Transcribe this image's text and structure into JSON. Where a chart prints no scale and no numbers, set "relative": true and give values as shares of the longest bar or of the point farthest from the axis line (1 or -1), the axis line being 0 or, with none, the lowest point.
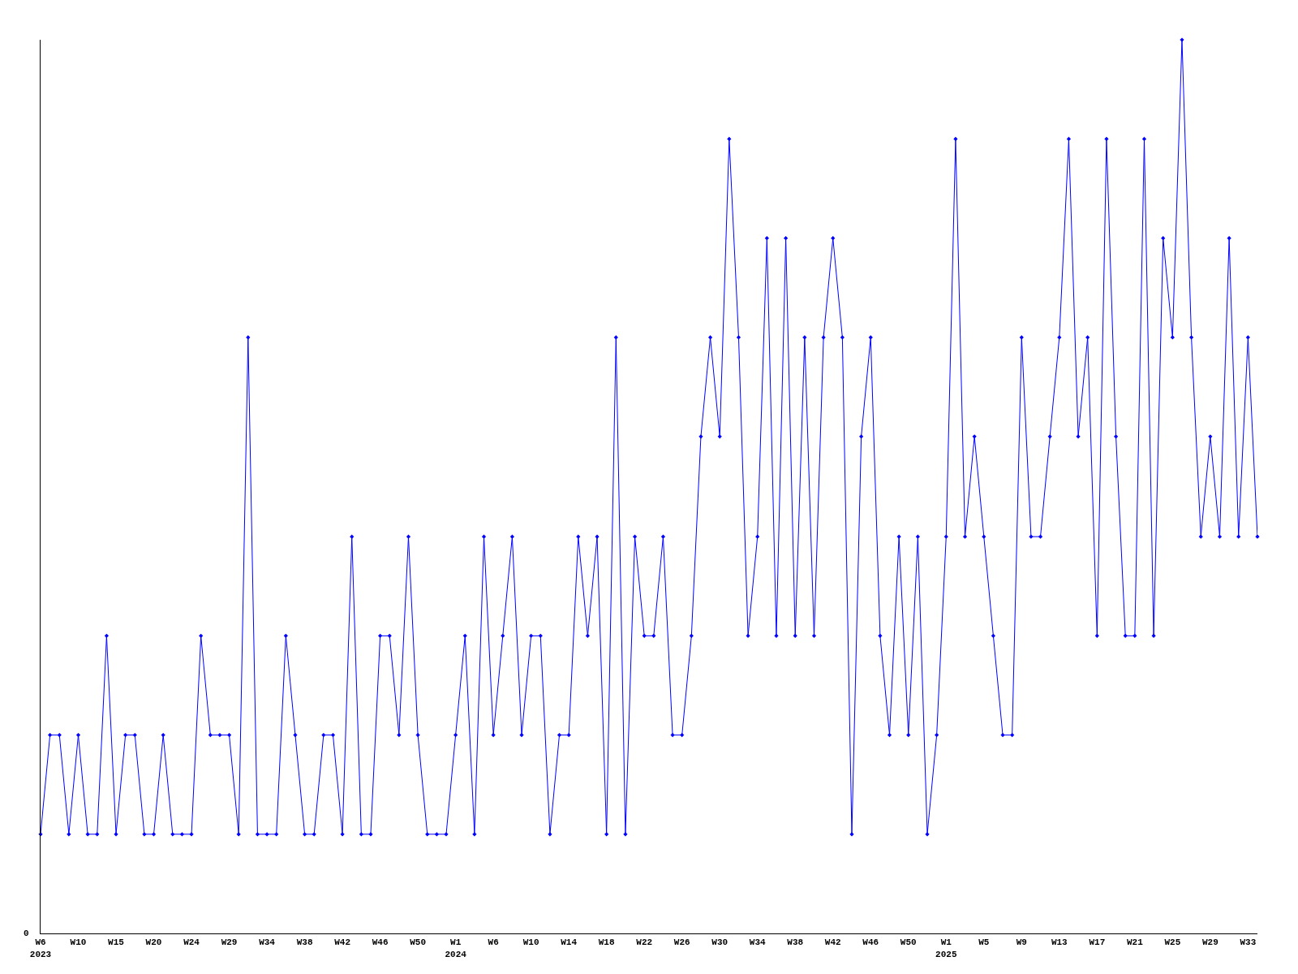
{
  "chart_data": {
    "type": "line",
    "relative": true,
    "color": "#0000ff",
    "marker": "diamond",
    "line_style": "solid",
    "legend": false,
    "annotations": [
      "0"
    ],
    "categories": [
      "W6\n2023",
      null,
      null,
      null,
      "W10",
      null,
      null,
      null,
      "W15",
      null,
      null,
      null,
      "W20",
      null,
      null,
      null,
      "W24",
      null,
      null,
      null,
      "W29",
      null,
      null,
      null,
      "W34",
      null,
      null,
      null,
      "W38",
      null,
      null,
      null,
      "W42",
      null,
      null,
      null,
      "W46",
      null,
      null,
      null,
      "W50",
      null,
      null,
      null,
      "W1\n2024",
      null,
      null,
      null,
      "W6",
      null,
      null,
      null,
      "W10",
      null,
      null,
      null,
      "W14",
      null,
      null,
      null,
      "W18",
      null,
      null,
      null,
      "W22",
      null,
      null,
      null,
      "W26",
      null,
      null,
      null,
      "W30",
      null,
      null,
      null,
      "W34",
      null,
      null,
      null,
      "W38",
      null,
      null,
      null,
      "W42",
      null,
      null,
      null,
      "W46",
      null,
      null,
      null,
      "W50",
      null,
      null,
      null,
      "W1\n2025",
      null,
      null,
      null,
      "W5",
      null,
      null,
      null,
      "W9",
      null,
      null,
      null,
      "W13",
      null,
      null,
      null,
      "W17",
      null,
      null,
      null,
      "W21",
      null,
      null,
      null,
      "W25",
      null,
      null,
      null,
      "W29",
      null,
      null,
      null,
      "W33",
      null
    ],
    "values": [
      0.111,
      0.222,
      0.222,
      0.111,
      0.222,
      0.111,
      0.111,
      0.333,
      0.111,
      0.222,
      0.222,
      0.111,
      0.111,
      0.222,
      0.111,
      0.111,
      0.111,
      0.333,
      0.222,
      0.222,
      0.222,
      0.111,
      0.667,
      0.111,
      0.111,
      0.111,
      0.333,
      0.222,
      0.111,
      0.111,
      0.222,
      0.222,
      0.111,
      0.444,
      0.111,
      0.111,
      0.333,
      0.333,
      0.222,
      0.444,
      0.222,
      0.111,
      0.111,
      0.111,
      0.222,
      0.333,
      0.111,
      0.444,
      0.222,
      0.333,
      0.444,
      0.222,
      0.333,
      0.333,
      0.111,
      0.222,
      0.222,
      0.444,
      0.333,
      0.444,
      0.111,
      0.667,
      0.111,
      0.444,
      0.333,
      0.333,
      0.444,
      0.222,
      0.222,
      0.333,
      0.556,
      0.667,
      0.556,
      0.889,
      0.667,
      0.333,
      0.444,
      0.778,
      0.333,
      0.778,
      0.333,
      0.667,
      0.333,
      0.667,
      0.778,
      0.667,
      0.111,
      0.556,
      0.667,
      0.333,
      0.222,
      0.444,
      0.222,
      0.444,
      0.111,
      0.222,
      0.444,
      0.889,
      0.444,
      0.556,
      0.444,
      0.333,
      0.222,
      0.222,
      0.667,
      0.444,
      0.444,
      0.556,
      0.667,
      0.889,
      0.556,
      0.667,
      0.333,
      0.889,
      0.556,
      0.333,
      0.333,
      0.889,
      0.333,
      0.778,
      0.667,
      1,
      0.667,
      0.444,
      0.556,
      0.444,
      0.778,
      0.444,
      0.667,
      0.444
    ]
  }
}
